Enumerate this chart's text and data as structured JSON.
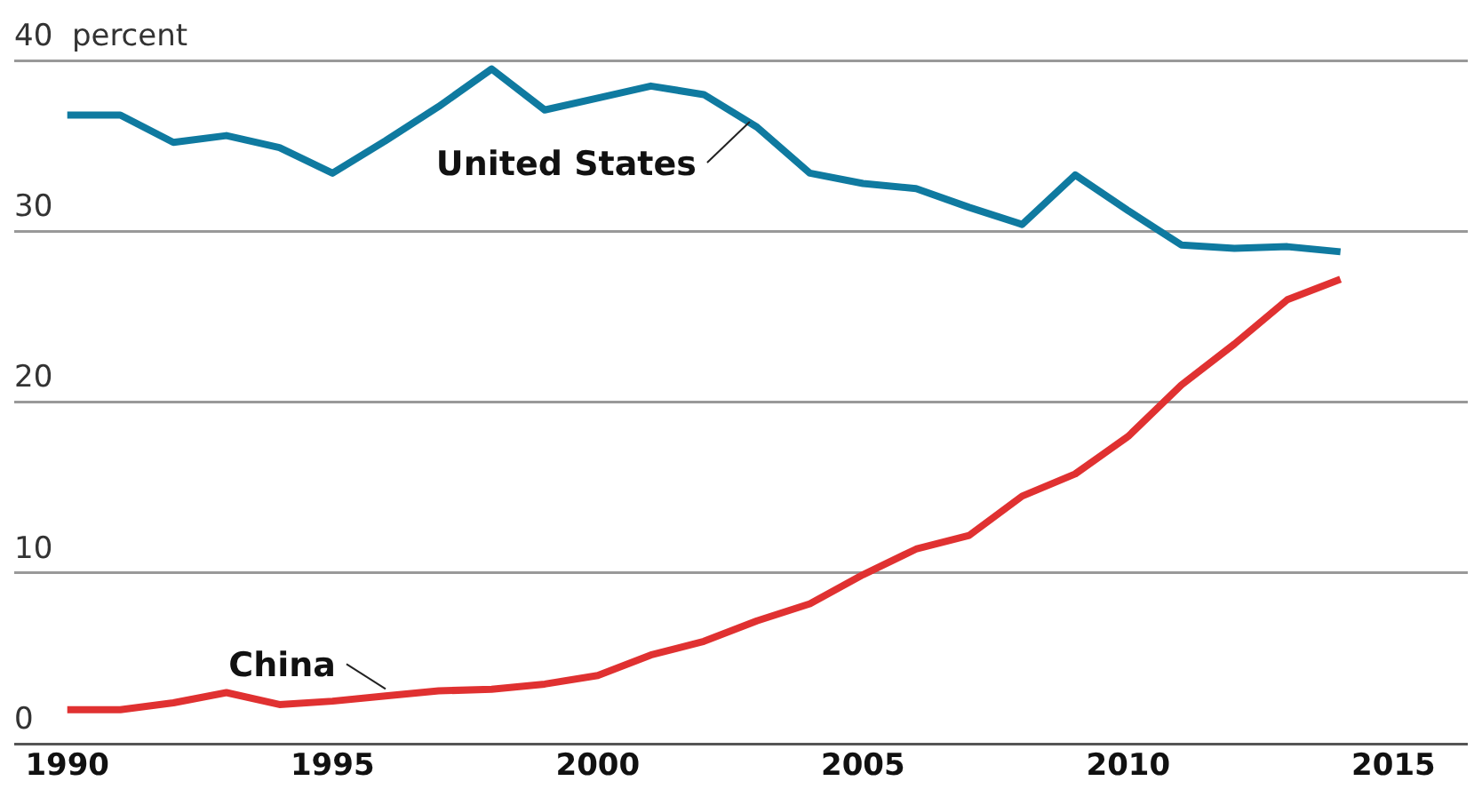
{
  "chart_data": {
    "type": "line",
    "x": [
      1990,
      1991,
      1992,
      1993,
      1994,
      1995,
      1996,
      1997,
      1998,
      1999,
      2000,
      2001,
      2002,
      2003,
      2004,
      2005,
      2006,
      2007,
      2008,
      2009,
      2010,
      2011,
      2012,
      2013,
      2014
    ],
    "series": [
      {
        "name": "United States",
        "color": "#0f7aa0",
        "values": [
          36.8,
          36.8,
          35.2,
          35.6,
          34.9,
          33.4,
          35.3,
          37.3,
          39.5,
          37.1,
          37.8,
          38.5,
          38.0,
          36.1,
          33.4,
          32.8,
          32.5,
          31.4,
          30.4,
          33.3,
          31.2,
          29.2,
          29.0,
          29.1,
          28.8
        ]
      },
      {
        "name": "China",
        "color": "#e03131",
        "values": [
          2.0,
          2.0,
          2.4,
          3.0,
          2.3,
          2.5,
          2.8,
          3.1,
          3.2,
          3.5,
          4.0,
          5.2,
          6.0,
          7.2,
          8.2,
          9.9,
          11.4,
          12.2,
          14.5,
          15.8,
          18.0,
          21.0,
          23.4,
          26.0,
          27.2
        ]
      }
    ],
    "xlim": [
      1989,
      2016.4
    ],
    "xticks": [
      1990,
      1995,
      2000,
      2005,
      2010,
      2015
    ],
    "ylim": [
      0,
      40
    ],
    "yticks": [
      0,
      10,
      20,
      30,
      {
        "value": 40,
        "label": "40  percent"
      }
    ],
    "grid": "y",
    "legend": false,
    "marker": "none",
    "line_style": "solid"
  }
}
